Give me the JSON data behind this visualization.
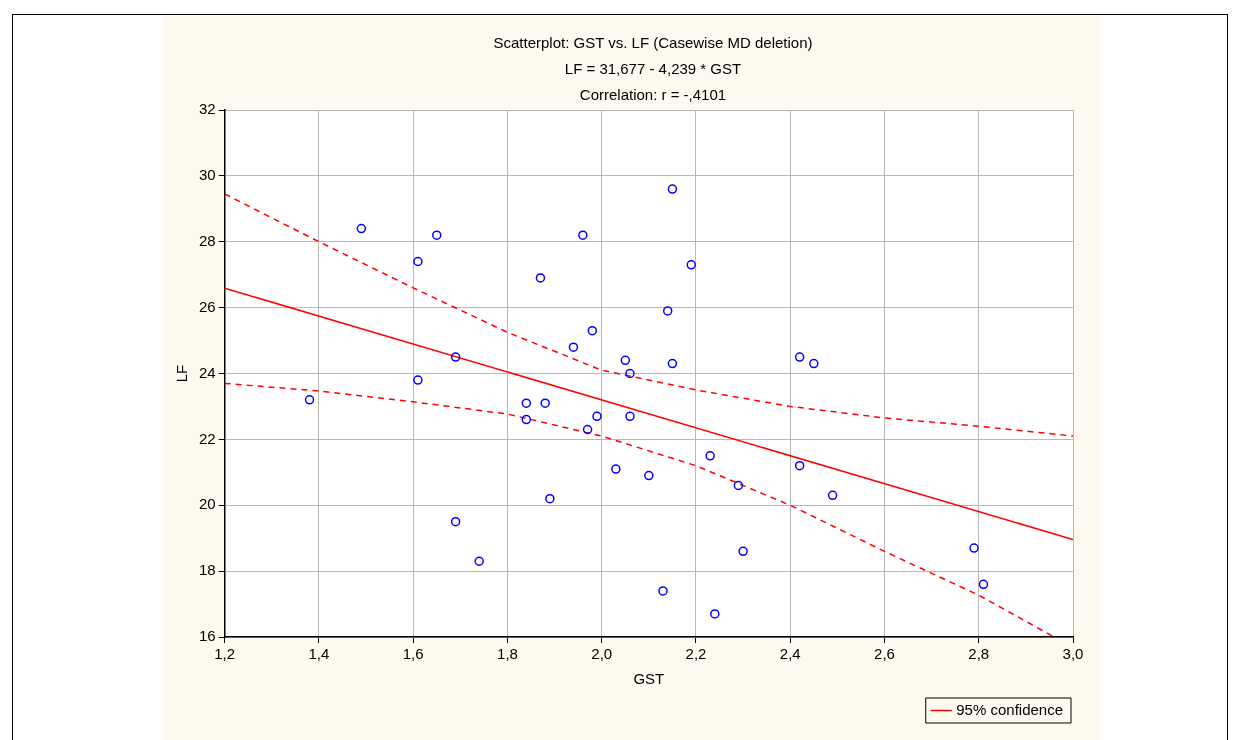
{
  "chart_data": {
    "type": "scatter",
    "title": "Scatterplot: GST vs. LF (Casewise MD deletion)",
    "subtitle": "LF = 31,677 - 4,239 * GST",
    "annotations": [
      "Correlation: r = -,4101"
    ],
    "xlabel": "GST",
    "ylabel": "LF",
    "xlim": [
      1.2,
      3.0
    ],
    "xticks": [
      {
        "value": 1.2,
        "label": "1,2"
      },
      {
        "value": 1.4,
        "label": "1,4"
      },
      {
        "value": 1.6,
        "label": "1,6"
      },
      {
        "value": 1.8,
        "label": "1,8"
      },
      {
        "value": 2.0,
        "label": "2,0"
      },
      {
        "value": 2.2,
        "label": "2,2"
      },
      {
        "value": 2.4,
        "label": "2,4"
      },
      {
        "value": 2.6,
        "label": "2,6"
      },
      {
        "value": 2.8,
        "label": "2,8"
      },
      {
        "value": 3.0,
        "label": "3,0"
      }
    ],
    "ylim": [
      16,
      32
    ],
    "yticks": [
      16,
      18,
      20,
      22,
      24,
      26,
      28,
      30,
      32
    ],
    "grid": true,
    "legend": "bottom right",
    "series": [
      {
        "marker": "circle",
        "color": "#0000ff",
        "x": [
          1.49,
          1.65,
          1.61,
          1.87,
          1.96,
          2.14,
          1.98,
          1.94,
          2.05,
          2.06,
          1.69,
          1.61,
          1.38,
          1.84,
          1.88,
          1.84,
          1.97,
          1.99,
          2.06,
          2.03,
          2.1,
          1.89,
          1.69,
          1.74,
          2.13,
          2.15,
          2.19,
          2.15,
          2.42,
          2.45,
          2.23,
          2.42,
          2.29,
          2.49,
          2.3,
          2.79,
          2.81,
          2.24
        ],
        "values": [
          28.4,
          28.2,
          27.4,
          26.9,
          28.2,
          25.9,
          25.3,
          24.8,
          24.4,
          24.0,
          24.5,
          23.8,
          23.2,
          23.1,
          23.1,
          22.6,
          22.3,
          22.7,
          22.7,
          21.1,
          20.9,
          20.2,
          19.5,
          18.3,
          17.4,
          29.6,
          27.3,
          24.3,
          24.5,
          24.3,
          21.5,
          21.2,
          20.6,
          20.3,
          18.6,
          18.7,
          17.6,
          16.7
        ]
      },
      {
        "type": "line",
        "marker": "none",
        "color": "#ff0000",
        "line_style": "solid",
        "x": [
          1.2,
          3.0
        ],
        "values": [
          26.59,
          18.96
        ]
      },
      {
        "type": "line",
        "marker": "none",
        "name": "95% confidence",
        "color": "#ff0000",
        "line_style": "dashed",
        "x": [
          1.2,
          1.4,
          1.6,
          1.8,
          2.0,
          2.2,
          2.4,
          2.6,
          2.8,
          3.0
        ],
        "values": [
          29.45,
          28.0,
          26.6,
          25.25,
          24.1,
          23.5,
          23.0,
          22.65,
          22.4,
          22.1
        ]
      },
      {
        "type": "line",
        "marker": "none",
        "color": "#ff0000",
        "line_style": "dashed",
        "x": [
          1.2,
          1.4,
          1.6,
          1.8,
          2.0,
          2.2,
          2.4,
          2.6,
          2.8,
          2.96
        ],
        "values": [
          23.7,
          23.47,
          23.14,
          22.77,
          22.1,
          21.2,
          20.0,
          18.6,
          17.27,
          16.0
        ]
      }
    ]
  }
}
